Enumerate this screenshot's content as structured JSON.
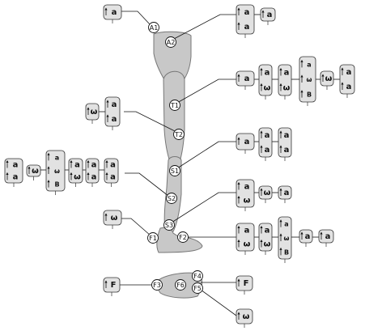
{
  "labels": {
    "A1": "A1",
    "A2": "A2",
    "T1": "T1",
    "T2": "T2",
    "S1": "S1",
    "S2": "S2",
    "S3": "S3",
    "F1": "F1",
    "F2": "F2",
    "F3": "F3",
    "F4": "F4",
    "F5": "F5",
    "F6": "F6"
  },
  "symbols": {
    "a": "a",
    "w": "ω",
    "B": "B",
    "F": "F"
  }
}
